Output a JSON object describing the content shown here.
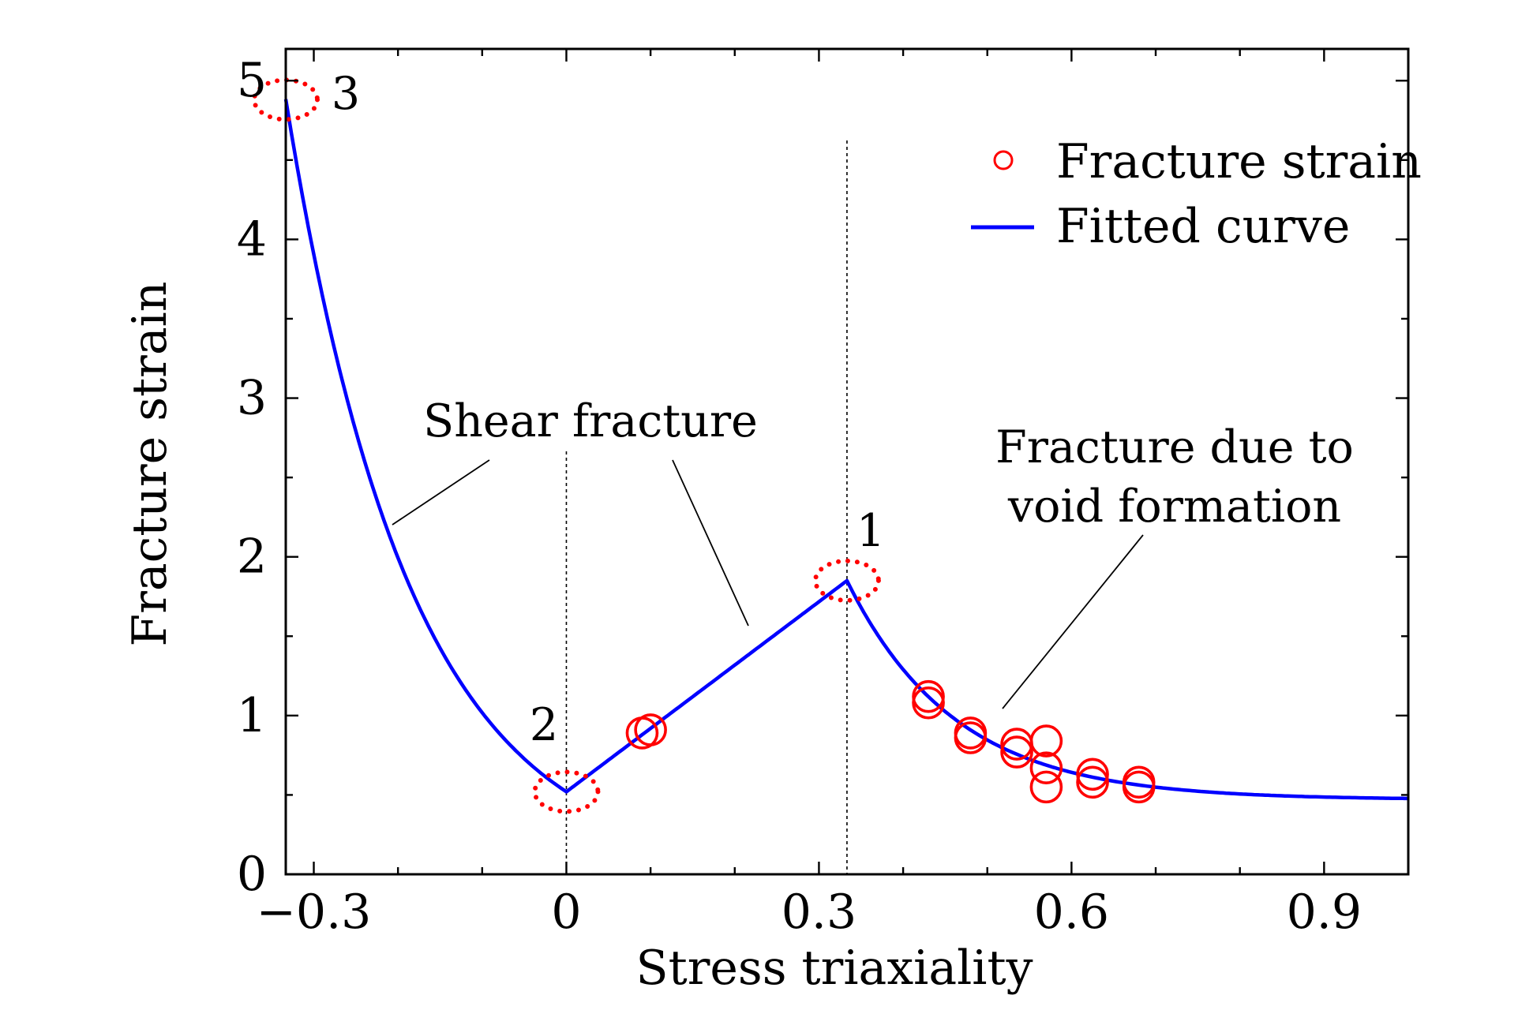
{
  "chart_data": {
    "type": "scatter",
    "title": "",
    "xlabel": "Stress triaxiality",
    "ylabel": "Fracture strain",
    "xlim": [
      -0.3333,
      1.0
    ],
    "ylim": [
      0,
      5.2
    ],
    "xticks": [
      -0.3,
      0,
      0.3,
      0.6,
      0.9
    ],
    "xtick_labels": [
      "−0.3",
      "0",
      "0.3",
      "0.6",
      "0.9"
    ],
    "yticks": [
      0,
      1,
      2,
      3,
      4,
      5
    ],
    "ytick_labels": [
      "0",
      "1",
      "2",
      "3",
      "4",
      "5"
    ],
    "grid": false,
    "legend_position": "top-right",
    "colors": {
      "points": "#ff0000",
      "curve": "#0000ff",
      "markers": "#ff0000"
    },
    "series": [
      {
        "name": "Fracture strain",
        "kind": "scatter",
        "x": [
          0.09,
          0.1,
          0.43,
          0.43,
          0.48,
          0.48,
          0.535,
          0.535,
          0.57,
          0.57,
          0.57,
          0.625,
          0.625,
          0.68,
          0.68
        ],
        "y": [
          0.89,
          0.91,
          1.08,
          1.12,
          0.86,
          0.89,
          0.77,
          0.82,
          0.55,
          0.67,
          0.84,
          0.58,
          0.63,
          0.55,
          0.58
        ]
      },
      {
        "name": "Fitted curve",
        "kind": "line",
        "x": [
          -0.3333,
          -0.3,
          -0.25,
          -0.2,
          -0.15,
          -0.1,
          -0.05,
          0,
          0.1111,
          0.2222,
          0.3333,
          0.35,
          0.4,
          0.45,
          0.5,
          0.55,
          0.6,
          0.65,
          0.7,
          0.75,
          0.8,
          0.85,
          0.9,
          0.95,
          1.0
        ],
        "y": [
          4.88,
          3.99,
          2.94,
          2.14,
          1.54,
          1.09,
          0.76,
          0.52,
          0.96,
          1.41,
          1.85,
          1.69,
          1.32,
          1.05,
          0.86,
          0.74,
          0.65,
          0.59,
          0.55,
          0.52,
          0.5,
          0.49,
          0.48,
          0.47,
          0.47
        ]
      }
    ],
    "vertical_reference_lines": [
      0,
      0.3333
    ],
    "marked_points": [
      {
        "label": "1",
        "x": 0.3333,
        "y": 1.85
      },
      {
        "label": "2",
        "x": 0,
        "y": 0.52
      },
      {
        "label": "3",
        "x": -0.3333,
        "y": 4.88
      }
    ],
    "annotations": [
      {
        "id": "shear",
        "text": "Shear fracture"
      },
      {
        "id": "void_1",
        "text": "Fracture due to"
      },
      {
        "id": "void_2",
        "text": "void formation"
      }
    ]
  }
}
